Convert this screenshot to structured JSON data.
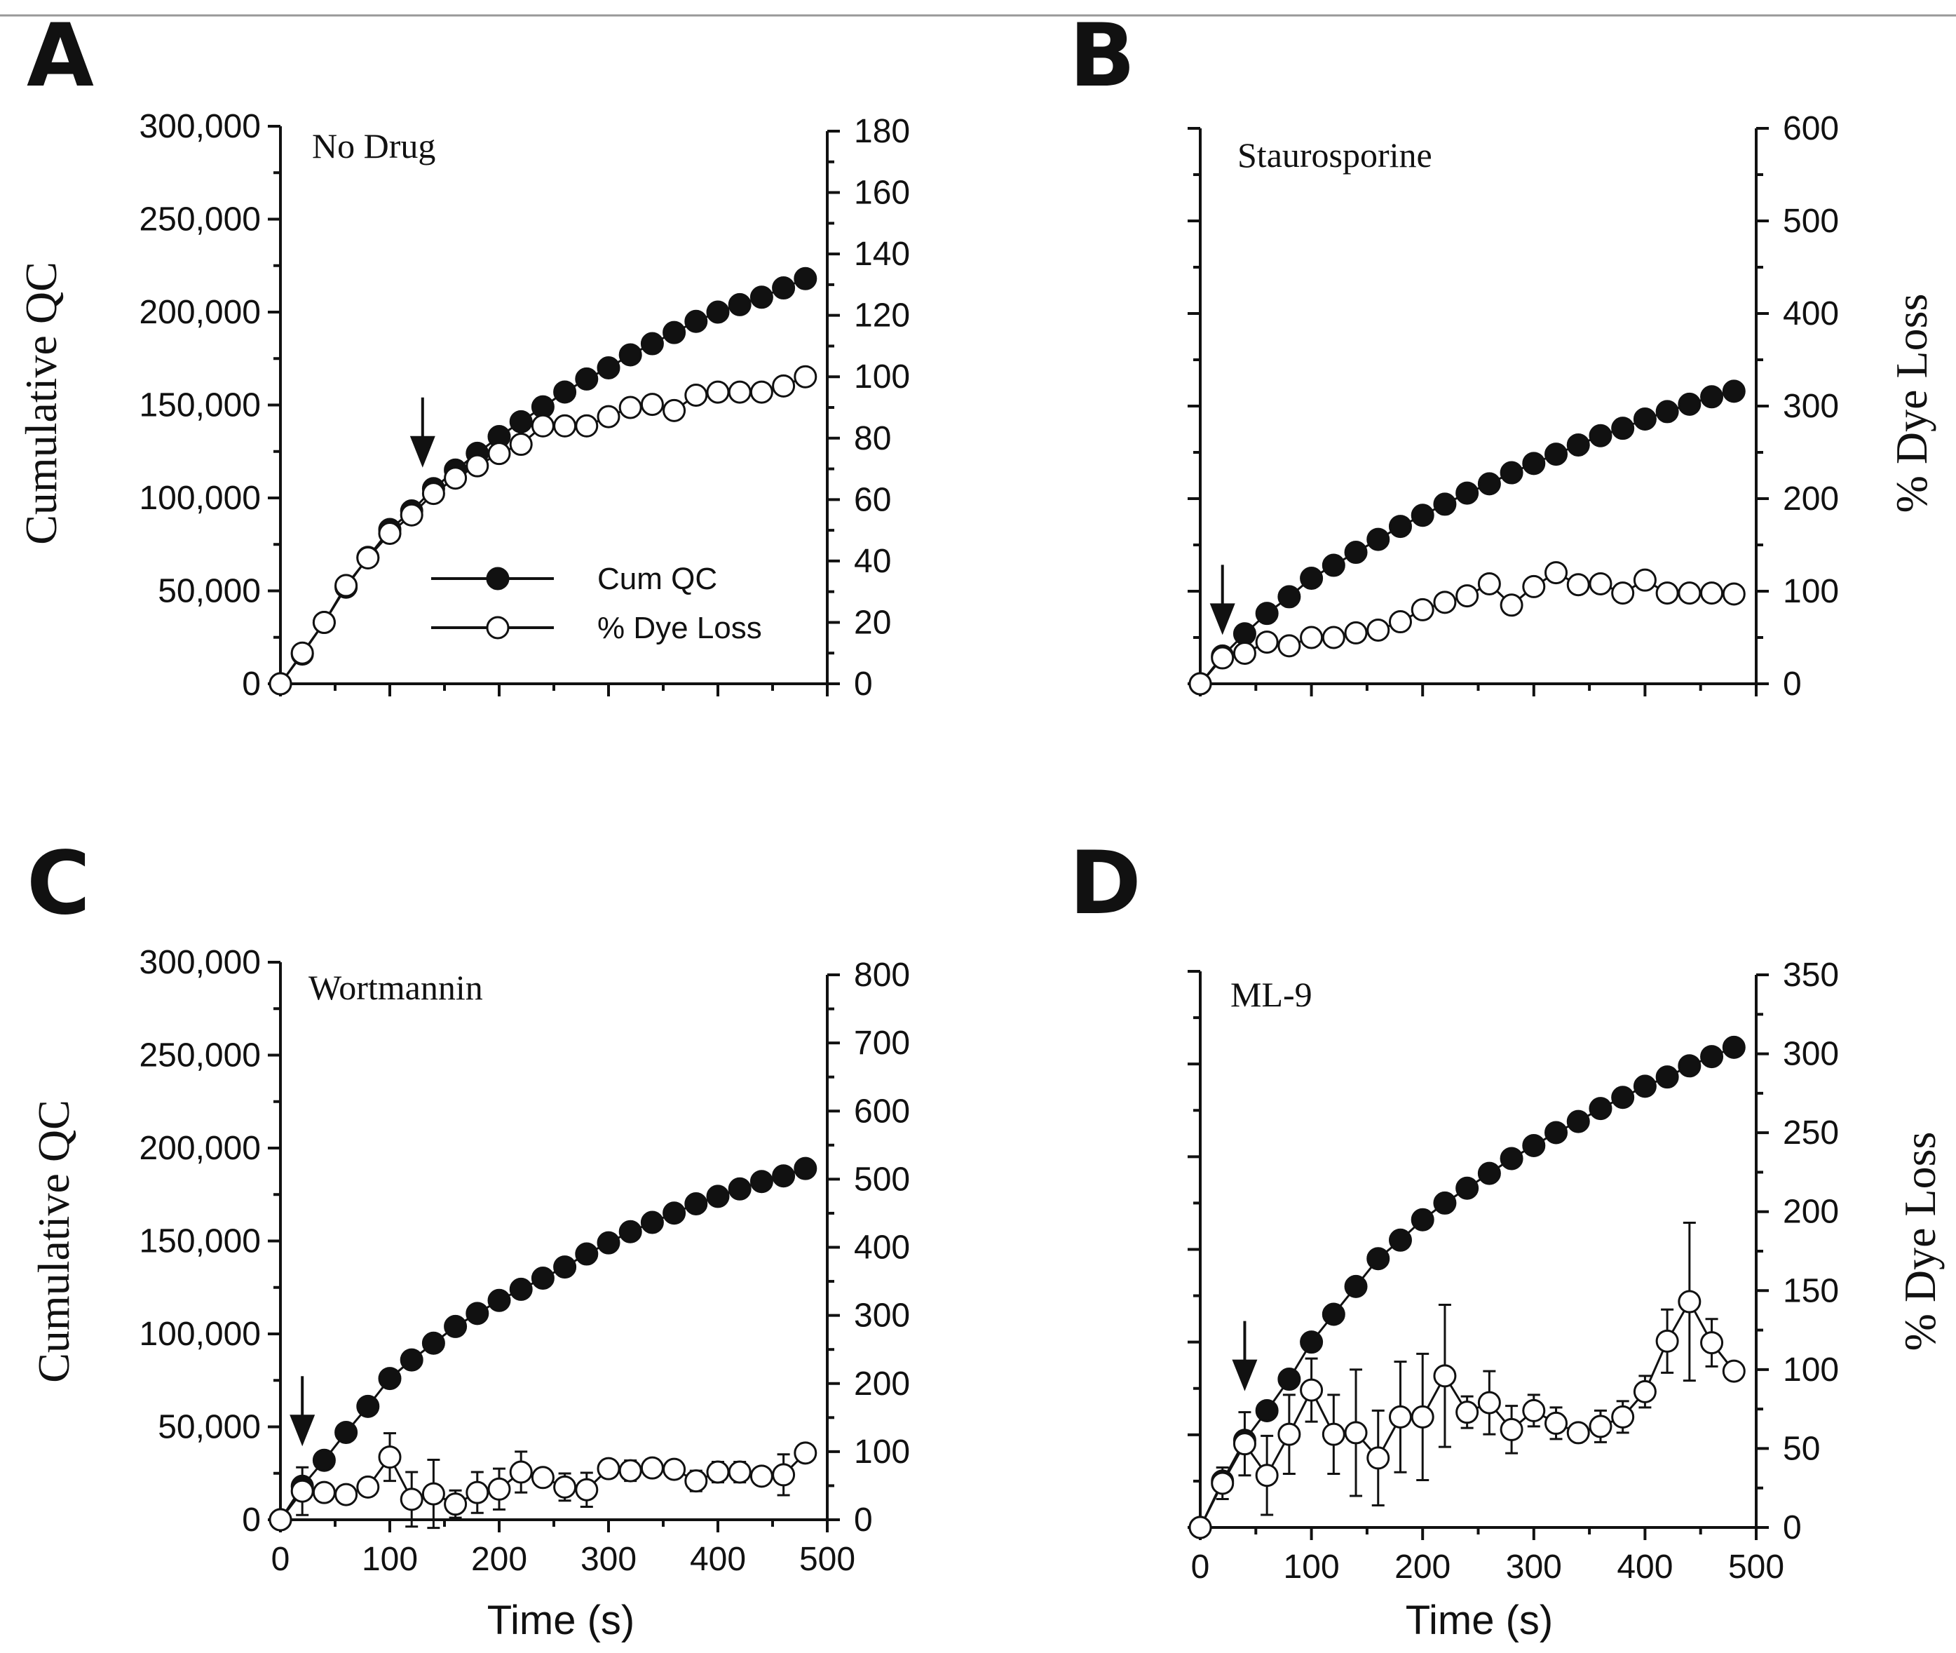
{
  "chart_data": [
    {
      "panel": "A",
      "type": "line",
      "title": "No Drug",
      "ylabel_left": "Cumulative QC",
      "ylabel_right": "",
      "xlabel": "",
      "xlim": [
        0,
        500
      ],
      "ylim_left": [
        0,
        300000
      ],
      "ylim_right": [
        0,
        180
      ],
      "yticks_left": [
        "0",
        "50,000",
        "100,000",
        "150,000",
        "200,000",
        "250,000",
        "300,000"
      ],
      "yticks_right": [
        "0",
        "20",
        "40",
        "60",
        "80",
        "100",
        "120",
        "140",
        "160",
        "180"
      ],
      "xticks": [],
      "arrow_x": 130,
      "legend": [
        "Cum QC",
        "% Dye Loss"
      ],
      "series": [
        {
          "name": "Cum QC",
          "axis": "left",
          "marker": "filled",
          "x": [
            0,
            20,
            40,
            60,
            80,
            100,
            120,
            140,
            160,
            180,
            200,
            220,
            240,
            260,
            280,
            300,
            320,
            340,
            360,
            380,
            400,
            420,
            440,
            460,
            480
          ],
          "y": [
            0,
            16000,
            33000,
            52000,
            68000,
            83000,
            93000,
            105000,
            115000,
            124000,
            133000,
            141000,
            149000,
            157000,
            164000,
            170000,
            177000,
            183000,
            189000,
            195000,
            200000,
            204000,
            208000,
            213000,
            218000
          ]
        },
        {
          "name": "% Dye Loss",
          "axis": "right",
          "marker": "open",
          "x": [
            0,
            20,
            40,
            60,
            80,
            100,
            120,
            140,
            160,
            180,
            200,
            220,
            240,
            260,
            280,
            300,
            320,
            340,
            360,
            380,
            400,
            420,
            440,
            460,
            480
          ],
          "y": [
            0,
            10,
            20,
            32,
            41,
            49,
            55,
            62,
            67,
            71,
            75,
            78,
            84,
            84,
            84,
            87,
            90,
            91,
            89,
            94,
            95,
            95,
            95,
            97,
            100
          ],
          "err": [
            0,
            0,
            0,
            0,
            1,
            0,
            1,
            0,
            0,
            0,
            0,
            0,
            1,
            0,
            0,
            1,
            1,
            2,
            0,
            0,
            2,
            0,
            0,
            1,
            0
          ]
        }
      ]
    },
    {
      "panel": "B",
      "type": "line",
      "title": "Staurosporine",
      "ylabel_left": "",
      "ylabel_right": "% Dye Loss",
      "xlabel": "",
      "xlim": [
        0,
        500
      ],
      "ylim_left": [
        0,
        300000
      ],
      "ylim_right": [
        0,
        600
      ],
      "yticks_left": [],
      "yticks_right": [
        "0",
        "100",
        "200",
        "300",
        "400",
        "500",
        "600"
      ],
      "xticks": [],
      "arrow_x": 20,
      "series": [
        {
          "name": "",
          "axis": "left",
          "marker": "filled",
          "x": [
            0,
            20,
            40,
            60,
            80,
            100,
            120,
            140,
            160,
            180,
            200,
            220,
            240,
            260,
            280,
            300,
            320,
            340,
            360,
            380,
            400,
            420,
            440,
            460,
            480
          ],
          "y": [
            0,
            15000,
            27000,
            38000,
            47000,
            57000,
            64000,
            71000,
            78000,
            85000,
            91000,
            97000,
            103000,
            108000,
            114000,
            119000,
            124000,
            129000,
            134000,
            138000,
            143000,
            147000,
            151000,
            155000,
            158000
          ]
        },
        {
          "name": "",
          "axis": "right",
          "marker": "open",
          "x": [
            0,
            20,
            40,
            60,
            80,
            100,
            120,
            140,
            160,
            180,
            200,
            220,
            240,
            260,
            280,
            300,
            320,
            340,
            360,
            380,
            400,
            420,
            440,
            460,
            480
          ],
          "y": [
            0,
            28,
            33,
            45,
            41,
            50,
            50,
            55,
            58,
            67,
            80,
            88,
            95,
            108,
            85,
            105,
            120,
            107,
            108,
            98,
            112,
            98,
            98,
            98,
            97
          ],
          "err": [
            0,
            0,
            0,
            0,
            0,
            0,
            0,
            0,
            0,
            0,
            0,
            0,
            0,
            0,
            0,
            0,
            0,
            0,
            0,
            0,
            0,
            0,
            0,
            0,
            0
          ]
        }
      ]
    },
    {
      "panel": "C",
      "type": "line",
      "title": "Wortmannin",
      "ylabel_left": "Cumulative QC",
      "ylabel_right": "",
      "xlabel": "Time (s)",
      "xlim": [
        0,
        500
      ],
      "ylim_left": [
        0,
        300000
      ],
      "ylim_right": [
        0,
        800
      ],
      "yticks_left": [
        "0",
        "50,000",
        "100,000",
        "150,000",
        "200,000",
        "250,000",
        "300,000"
      ],
      "yticks_right": [
        "0",
        "100",
        "200",
        "300",
        "400",
        "500",
        "600",
        "700",
        "800"
      ],
      "xticks": [
        "0",
        "100",
        "200",
        "300",
        "400",
        "500"
      ],
      "arrow_x": 20,
      "series": [
        {
          "name": "",
          "axis": "left",
          "marker": "filled",
          "x": [
            0,
            20,
            40,
            60,
            80,
            100,
            120,
            140,
            160,
            180,
            200,
            220,
            240,
            260,
            280,
            300,
            320,
            340,
            360,
            380,
            400,
            420,
            440,
            460,
            480
          ],
          "y": [
            0,
            18000,
            32000,
            47000,
            61000,
            76000,
            86000,
            95000,
            104000,
            111000,
            118000,
            124000,
            130000,
            136000,
            143000,
            149000,
            155000,
            160000,
            165000,
            170000,
            174000,
            178000,
            182000,
            185000,
            189000
          ]
        },
        {
          "name": "",
          "axis": "right",
          "marker": "open",
          "x": [
            0,
            20,
            40,
            60,
            80,
            100,
            120,
            140,
            160,
            180,
            200,
            220,
            240,
            260,
            280,
            300,
            320,
            340,
            360,
            380,
            400,
            420,
            440,
            460,
            480
          ],
          "y": [
            0,
            42,
            40,
            37,
            48,
            92,
            30,
            38,
            23,
            40,
            45,
            70,
            62,
            48,
            44,
            75,
            72,
            76,
            74,
            57,
            70,
            70,
            64,
            66,
            98
          ],
          "err": [
            0,
            35,
            0,
            0,
            0,
            35,
            40,
            50,
            20,
            30,
            30,
            30,
            0,
            20,
            25,
            0,
            15,
            0,
            0,
            15,
            15,
            15,
            0,
            30,
            0
          ]
        }
      ]
    },
    {
      "panel": "D",
      "type": "line",
      "title": "ML-9",
      "ylabel_left": "",
      "ylabel_right": "% Dye Loss",
      "xlabel": "Time (s)",
      "xlim": [
        0,
        500
      ],
      "ylim_left": [
        0,
        300000
      ],
      "ylim_right": [
        0,
        350
      ],
      "yticks_left": [],
      "yticks_right": [
        "0",
        "50",
        "100",
        "150",
        "200",
        "250",
        "300",
        "350"
      ],
      "xticks": [
        "0",
        "100",
        "200",
        "300",
        "400",
        "500"
      ],
      "arrow_x": 40,
      "series": [
        {
          "name": "",
          "axis": "left",
          "marker": "filled",
          "x": [
            0,
            20,
            40,
            60,
            80,
            100,
            120,
            140,
            160,
            180,
            200,
            220,
            240,
            260,
            280,
            300,
            320,
            340,
            360,
            380,
            400,
            420,
            440,
            460,
            480
          ],
          "y": [
            0,
            25000,
            47000,
            63000,
            80000,
            100000,
            115000,
            130000,
            145000,
            155000,
            166000,
            175000,
            183000,
            191000,
            199000,
            206000,
            213000,
            219000,
            226000,
            232000,
            238000,
            243000,
            249000,
            254000,
            259000
          ]
        },
        {
          "name": "",
          "axis": "right",
          "marker": "open",
          "x": [
            0,
            20,
            40,
            60,
            80,
            100,
            120,
            140,
            160,
            180,
            200,
            220,
            240,
            260,
            280,
            300,
            320,
            340,
            360,
            380,
            400,
            420,
            440,
            460,
            480
          ],
          "y": [
            0,
            28,
            53,
            33,
            59,
            87,
            59,
            60,
            44,
            70,
            70,
            96,
            73,
            79,
            62,
            74,
            66,
            60,
            64,
            70,
            86,
            118,
            143,
            117,
            99
          ],
          "err": [
            0,
            10,
            20,
            25,
            25,
            20,
            25,
            40,
            30,
            35,
            40,
            45,
            10,
            20,
            15,
            10,
            10,
            0,
            10,
            10,
            10,
            20,
            50,
            15,
            0
          ]
        }
      ]
    }
  ],
  "axis_colors": {
    "ink": "#111111",
    "open_marker_fill": "#ffffff"
  }
}
